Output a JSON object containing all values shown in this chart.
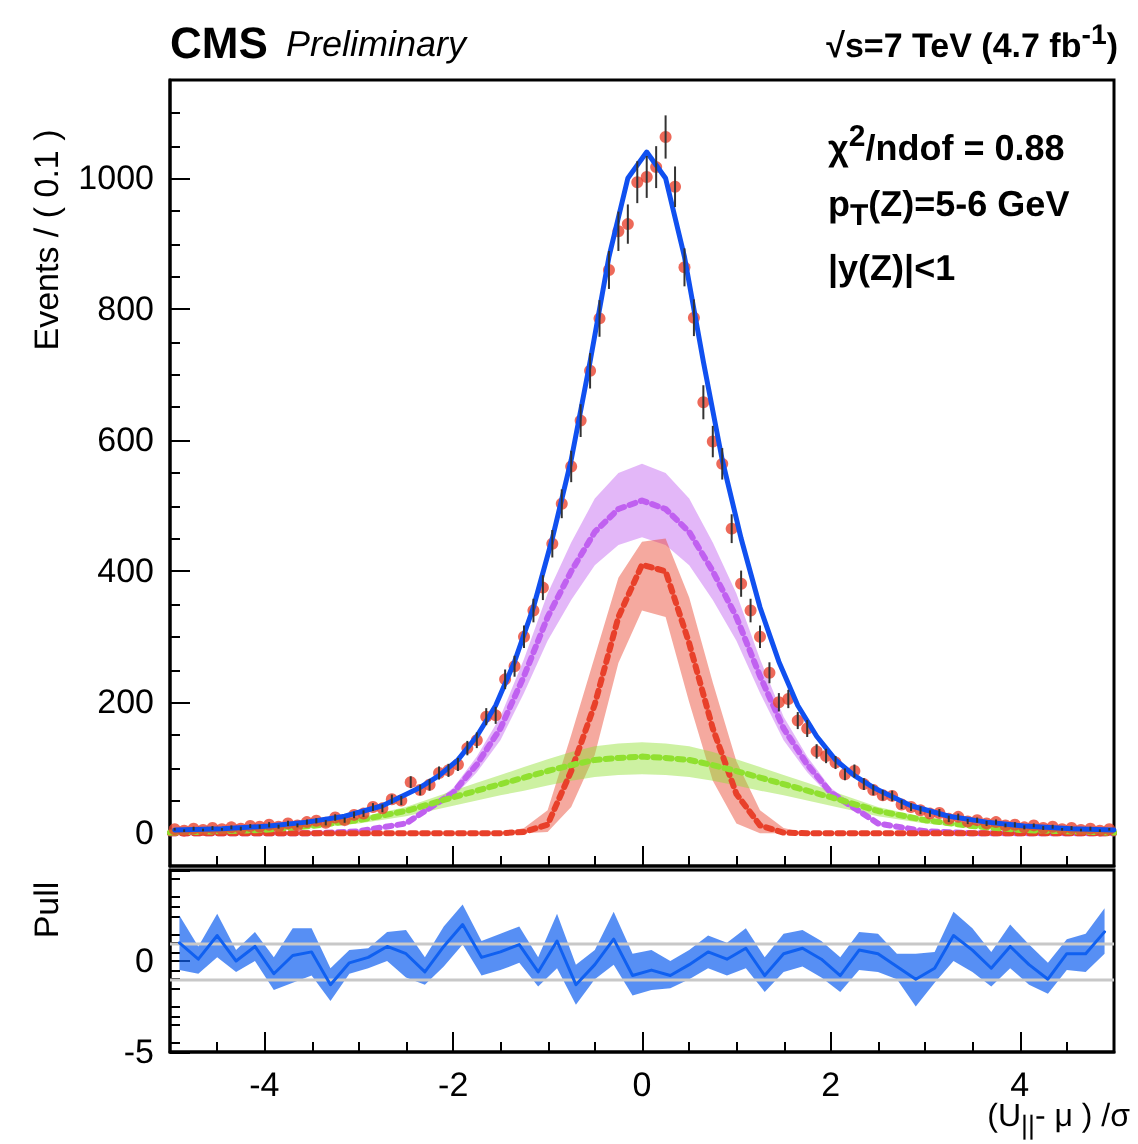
{
  "chart_data": [
    {
      "type": "scatter",
      "title": "CMS",
      "subtitle": "Preliminary",
      "ylabel": "Events / ( 0.1 )",
      "annotations": [
        "√s=7 TeV (4.7 fb$^{-1}$)",
        "χ$^{2}$/ndof = 0.88",
        "p$_{T}$(Z)=5-6 GeV",
        "|y(Z)|<1"
      ],
      "xlim": [
        -5,
        5
      ],
      "xticks": [
        -4,
        -2,
        0,
        2,
        4
      ],
      "ylim": [
        -50,
        1150
      ],
      "yticks": [
        0,
        200,
        400,
        600,
        800,
        1000
      ],
      "tick_labels": "y",
      "series": [
        {
          "type": "line",
          "line_style": "dotted",
          "marker": "none",
          "color": "#c060f0",
          "x": [
            -5,
            -4,
            -3.5,
            -3,
            -2.5,
            -2,
            -1.75,
            -1.5,
            -1.25,
            -1,
            -0.75,
            -0.5,
            -0.25,
            0,
            0.25,
            0.5,
            0.75,
            1,
            1.25,
            1.5,
            1.75,
            2,
            2.5,
            3,
            3.5,
            4,
            5
          ],
          "values": [
            0,
            0,
            0,
            3,
            15,
            62,
            105,
            160,
            240,
            330,
            400,
            460,
            495,
            508,
            495,
            460,
            400,
            330,
            240,
            160,
            105,
            62,
            15,
            3,
            0,
            0,
            0
          ],
          "lower": [
            0,
            0,
            0,
            3,
            13,
            55,
            93,
            142,
            214,
            294,
            356,
            409,
            440,
            452,
            440,
            409,
            356,
            294,
            214,
            142,
            93,
            55,
            13,
            3,
            0,
            0,
            0
          ],
          "upper": [
            0,
            0,
            0,
            3,
            17,
            69,
            117,
            178,
            266,
            366,
            444,
            511,
            550,
            564,
            550,
            511,
            444,
            366,
            266,
            178,
            117,
            69,
            17,
            3,
            0,
            0,
            0
          ]
        },
        {
          "type": "line",
          "line_style": "dotted",
          "marker": "none",
          "color": "#e8402a",
          "x": [
            -5,
            -4,
            -3.5,
            -3,
            -2.5,
            -2,
            -1.75,
            -1.5,
            -1.25,
            -1,
            -0.75,
            -0.5,
            -0.25,
            0,
            0.25,
            0.5,
            0.75,
            1,
            1.25,
            1.5,
            1.75,
            2,
            2.5,
            3,
            3.5,
            4,
            5
          ],
          "values": [
            0,
            0,
            0,
            0,
            0,
            0,
            0,
            0,
            2,
            13,
            95,
            197,
            330,
            410,
            400,
            290,
            160,
            60,
            12,
            1,
            0,
            0,
            0,
            0,
            0,
            0,
            0
          ],
          "lower": [
            0,
            0,
            0,
            0,
            0,
            0,
            0,
            0,
            0,
            2,
            40,
            120,
            260,
            340,
            330,
            200,
            80,
            15,
            0,
            0,
            0,
            0,
            0,
            0,
            0,
            0,
            0
          ],
          "upper": [
            0,
            0,
            0,
            0,
            0,
            0,
            0,
            0,
            8,
            35,
            150,
            270,
            390,
            445,
            450,
            360,
            230,
            110,
            35,
            8,
            0,
            0,
            0,
            0,
            0,
            0,
            0
          ]
        },
        {
          "type": "line",
          "line_style": "dotted",
          "marker": "none",
          "color": "#90e030",
          "x": [
            -5,
            -4,
            -3.5,
            -3,
            -2.5,
            -2,
            -1.75,
            -1.5,
            -1.25,
            -1,
            -0.75,
            -0.5,
            -0.25,
            0,
            0.25,
            0.5,
            0.75,
            1,
            1.25,
            1.5,
            1.75,
            2,
            2.5,
            3,
            3.5,
            4,
            5
          ],
          "values": [
            1,
            5,
            11,
            20,
            34,
            55,
            65,
            75,
            85,
            95,
            104,
            112,
            115,
            117,
            115,
            112,
            104,
            95,
            85,
            75,
            65,
            55,
            34,
            20,
            11,
            5,
            1
          ],
          "lower": [
            1,
            4,
            8,
            15,
            26,
            42,
            50,
            58,
            65,
            73,
            80,
            86,
            89,
            90,
            89,
            86,
            80,
            73,
            65,
            58,
            50,
            42,
            26,
            15,
            8,
            4,
            1
          ],
          "upper": [
            1,
            6,
            13,
            24,
            40,
            65,
            77,
            89,
            101,
            113,
            124,
            133,
            137,
            139,
            137,
            133,
            124,
            113,
            101,
            89,
            77,
            65,
            40,
            24,
            13,
            6,
            1
          ]
        },
        {
          "type": "line",
          "line_style": "solid",
          "marker": "none",
          "color": "#1050f0",
          "x": [
            -4.95,
            -4.45,
            -3.95,
            -3.55,
            -3.15,
            -2.75,
            -2.35,
            -2.15,
            -1.95,
            -1.75,
            -1.55,
            -1.35,
            -1.15,
            -0.95,
            -0.75,
            -0.55,
            -0.35,
            -0.15,
            0.05,
            0.25,
            0.45,
            0.65,
            0.85,
            1.05,
            1.25,
            1.45,
            1.65,
            1.85,
            2.05,
            2.25,
            2.45,
            2.85,
            3.25,
            3.65,
            4.05,
            4.55,
            5.0
          ],
          "values": [
            5,
            7,
            11,
            17,
            26,
            42,
            70,
            88,
            112,
            148,
            195,
            262,
            345,
            450,
            570,
            720,
            880,
            1000,
            1040,
            1000,
            880,
            720,
            570,
            450,
            345,
            262,
            195,
            148,
            112,
            88,
            70,
            42,
            26,
            17,
            11,
            7,
            5
          ]
        },
        {
          "marker": "circle",
          "color": "#e8432f",
          "x": [
            -4.95,
            -4.85,
            -4.75,
            -4.65,
            -4.55,
            -4.45,
            -4.35,
            -4.25,
            -4.15,
            -4.05,
            -3.95,
            -3.85,
            -3.75,
            -3.65,
            -3.55,
            -3.45,
            -3.35,
            -3.25,
            -3.15,
            -3.05,
            -2.95,
            -2.85,
            -2.75,
            -2.65,
            -2.55,
            -2.45,
            -2.35,
            -2.25,
            -2.15,
            -2.05,
            -1.95,
            -1.85,
            -1.75,
            -1.65,
            -1.55,
            -1.45,
            -1.35,
            -1.25,
            -1.15,
            -1.05,
            -0.95,
            -0.85,
            -0.75,
            -0.65,
            -0.55,
            -0.45,
            -0.35,
            -0.25,
            -0.15,
            -0.05,
            0.05,
            0.15,
            0.25,
            0.35,
            0.45,
            0.55,
            0.65,
            0.75,
            0.85,
            0.95,
            1.05,
            1.15,
            1.25,
            1.35,
            1.45,
            1.55,
            1.65,
            1.75,
            1.85,
            1.95,
            2.05,
            2.15,
            2.25,
            2.35,
            2.45,
            2.55,
            2.65,
            2.75,
            2.85,
            2.95,
            3.05,
            3.15,
            3.25,
            3.35,
            3.45,
            3.55,
            3.65,
            3.75,
            3.85,
            3.95,
            4.05,
            4.15,
            4.25,
            4.35,
            4.45,
            4.55,
            4.65,
            4.75,
            4.85,
            4.95
          ],
          "values": [
            6,
            4,
            7,
            5,
            8,
            6,
            9,
            7,
            11,
            10,
            13,
            10,
            15,
            12,
            17,
            19,
            16,
            24,
            20,
            28,
            30,
            40,
            38,
            52,
            50,
            78,
            66,
            74,
            92,
            96,
            105,
            130,
            142,
            178,
            180,
            235,
            255,
            300,
            340,
            375,
            442,
            503,
            560,
            630,
            706,
            786,
            860,
            919,
            930,
            994,
            1002,
            1017,
            1063,
            987,
            864,
            787,
            658,
            598,
            564,
            465,
            381,
            340,
            300,
            245,
            200,
            205,
            172,
            160,
            125,
            118,
            108,
            90,
            95,
            75,
            66,
            58,
            57,
            44,
            40,
            35,
            30,
            31,
            22,
            25,
            18,
            20,
            15,
            17,
            12,
            13,
            9,
            12,
            8,
            10,
            6,
            8,
            5,
            7,
            4,
            6
          ],
          "errors": [
            2,
            2,
            3,
            2,
            3,
            2,
            3,
            3,
            3,
            3,
            4,
            3,
            4,
            3,
            4,
            4,
            4,
            5,
            4,
            5,
            5,
            6,
            6,
            7,
            7,
            9,
            8,
            9,
            10,
            10,
            10,
            11,
            12,
            13,
            13,
            15,
            16,
            17,
            18,
            19,
            21,
            22,
            24,
            25,
            27,
            28,
            29,
            30,
            30,
            32,
            32,
            32,
            33,
            31,
            29,
            28,
            26,
            24,
            24,
            22,
            20,
            18,
            17,
            16,
            14,
            14,
            13,
            13,
            11,
            11,
            10,
            9,
            10,
            9,
            8,
            8,
            8,
            7,
            6,
            6,
            5,
            6,
            5,
            5,
            4,
            4,
            4,
            4,
            3,
            4,
            3,
            3,
            3,
            3,
            2,
            3,
            2,
            3,
            2,
            2
          ]
        }
      ]
    },
    {
      "type": "line",
      "xlabel": "(U$_{||}$- μ ) /σ",
      "ylabel": "Pull",
      "xlim": [
        -5,
        5
      ],
      "xticks": [
        -4,
        -2,
        0,
        2,
        4
      ],
      "ylim": [
        -5,
        5
      ],
      "yticks": [
        -5,
        0,
        {
          "value": 5,
          "label": null
        }
      ],
      "ref_lines": [
        {
          "axis": "y",
          "value": 1,
          "color": "#c8c8c8"
        },
        {
          "axis": "y",
          "value": -1,
          "color": "#c8c8c8"
        }
      ],
      "series": [
        {
          "color": "#1060f0",
          "x": [
            -4.9,
            -4.7,
            -4.5,
            -4.3,
            -4.1,
            -3.9,
            -3.7,
            -3.5,
            -3.3,
            -3.1,
            -2.9,
            -2.7,
            -2.5,
            -2.3,
            -2.1,
            -1.9,
            -1.7,
            -1.5,
            -1.3,
            -1.1,
            -0.9,
            -0.7,
            -0.5,
            -0.3,
            -0.1,
            0.1,
            0.3,
            0.5,
            0.7,
            0.9,
            1.1,
            1.3,
            1.5,
            1.7,
            1.9,
            2.1,
            2.3,
            2.5,
            2.7,
            2.9,
            3.1,
            3.3,
            3.5,
            3.7,
            3.9,
            4.1,
            4.3,
            4.5,
            4.7,
            4.9
          ],
          "values": [
            1.0,
            0.1,
            1.4,
            0,
            0.8,
            -0.7,
            0.3,
            0.5,
            -1.3,
            -0.1,
            0.2,
            0.8,
            0.4,
            -0.6,
            0.8,
            2.0,
            0.2,
            0.5,
            0.9,
            -0.6,
            1.1,
            -1.3,
            -0.2,
            1.2,
            -0.8,
            -0.5,
            -0.8,
            -0.2,
            0.5,
            0.1,
            0.7,
            -0.8,
            0.4,
            0.7,
            0.1,
            -0.8,
            0.6,
            0.4,
            -0.3,
            -1.0,
            -0.4,
            1.4,
            0.6,
            -0.4,
            0.8,
            -0.2,
            -1.0,
            0.4,
            0.4,
            1.6
          ],
          "lower": [
            -0.5,
            -0.7,
            0.2,
            -0.6,
            0.0,
            -1.6,
            -1.2,
            -0.8,
            -2.2,
            -0.7,
            -0.4,
            0.0,
            -0.9,
            -1.3,
            -0.3,
            0.9,
            -0.8,
            -0.5,
            -0.1,
            -1.4,
            -0.4,
            -2.4,
            -1.0,
            -0.2,
            -1.9,
            -1.6,
            -1.5,
            -1.0,
            -0.4,
            -0.8,
            -0.4,
            -1.7,
            -0.6,
            -0.3,
            -0.9,
            -1.7,
            -0.5,
            -0.6,
            -1.0,
            -2.5,
            -1.2,
            0.0,
            -0.6,
            -1.4,
            -0.4,
            -1.3,
            -1.8,
            -0.5,
            -0.6,
            0.4
          ],
          "upper": [
            2.5,
            0.8,
            2.6,
            0.6,
            1.6,
            0.2,
            1.8,
            1.8,
            -0.4,
            0.6,
            0.7,
            1.6,
            1.7,
            0.2,
            1.9,
            3.1,
            1.1,
            1.5,
            1.9,
            0.2,
            2.6,
            -0.2,
            0.6,
            2.7,
            0.4,
            0.6,
            0.0,
            0.6,
            1.4,
            1.0,
            1.8,
            0.2,
            1.5,
            1.7,
            1.1,
            0.2,
            1.6,
            1.5,
            0.4,
            0.4,
            0.5,
            2.7,
            1.8,
            0.5,
            2.0,
            0.9,
            -0.1,
            1.2,
            1.5,
            2.9
          ]
        }
      ]
    }
  ]
}
